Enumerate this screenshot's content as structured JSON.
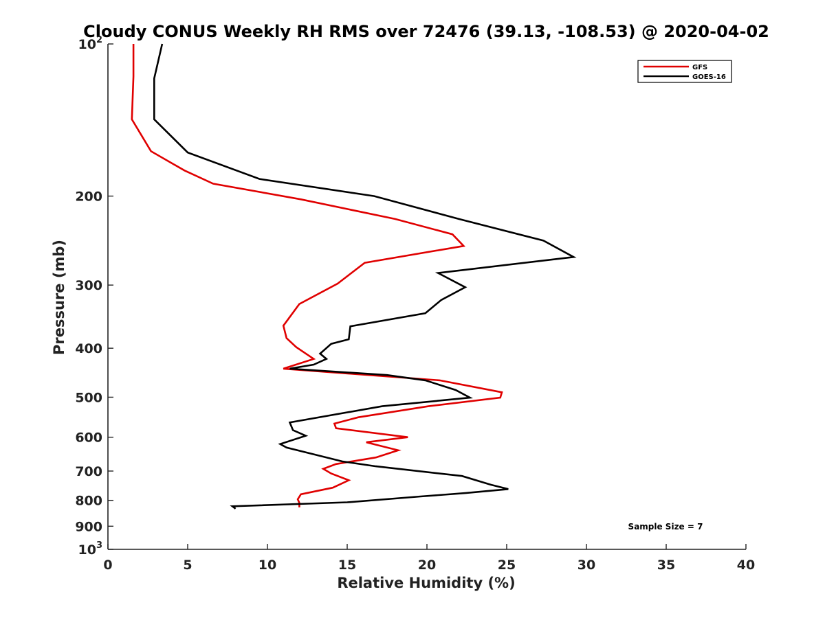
{
  "chart_data": {
    "type": "line",
    "title": "Cloudy CONUS Weekly RH RMS over 72476 (39.13, -108.53) @ 2020-04-02",
    "xlabel": "Relative Humidity (%)",
    "ylabel": "Pressure (mb)",
    "xlim": [
      0,
      40
    ],
    "ylim": [
      100,
      1000
    ],
    "y_scale": "log",
    "y_reversed": true,
    "x_ticks": [
      "0",
      "5",
      "10",
      "15",
      "20",
      "25",
      "30",
      "35",
      "40"
    ],
    "y_ticks": [
      {
        "value": 100,
        "label": "10",
        "exp": "2"
      },
      {
        "value": 200,
        "label": "200"
      },
      {
        "value": 300,
        "label": "300"
      },
      {
        "value": 400,
        "label": "400"
      },
      {
        "value": 500,
        "label": "500"
      },
      {
        "value": 600,
        "label": "600"
      },
      {
        "value": 700,
        "label": "700"
      },
      {
        "value": 800,
        "label": "800"
      },
      {
        "value": 900,
        "label": "900"
      },
      {
        "value": 1000,
        "label": "10",
        "exp": "3"
      }
    ],
    "grid": false,
    "legend_position": "top-right",
    "annotation": "Sample Size = 7",
    "series": [
      {
        "name": "GFS",
        "color": "#e00000",
        "points": [
          [
            1.6,
            100
          ],
          [
            1.6,
            116
          ],
          [
            1.5,
            141
          ],
          [
            2.7,
            163
          ],
          [
            4.8,
            178
          ],
          [
            6.6,
            189
          ],
          [
            12.1,
            203
          ],
          [
            18.0,
            222
          ],
          [
            21.6,
            238
          ],
          [
            22.3,
            251
          ],
          [
            16.1,
            271
          ],
          [
            14.4,
            298
          ],
          [
            12.0,
            327
          ],
          [
            11.0,
            361
          ],
          [
            11.2,
            382
          ],
          [
            11.8,
            398
          ],
          [
            12.9,
            420
          ],
          [
            11.0,
            439
          ],
          [
            20.8,
            463
          ],
          [
            24.7,
            489
          ],
          [
            24.6,
            501
          ],
          [
            20.1,
            521
          ],
          [
            15.7,
            548
          ],
          [
            14.2,
            564
          ],
          [
            14.3,
            576
          ],
          [
            18.8,
            600
          ],
          [
            16.2,
            614
          ],
          [
            18.2,
            637
          ],
          [
            16.8,
            658
          ],
          [
            14.3,
            678
          ],
          [
            13.5,
            693
          ],
          [
            14.0,
            708
          ],
          [
            15.1,
            730
          ],
          [
            14.1,
            755
          ],
          [
            12.1,
            778
          ],
          [
            11.9,
            796
          ],
          [
            12.0,
            809
          ],
          [
            12.0,
            826
          ]
        ]
      },
      {
        "name": "GOES-16",
        "color": "#000000",
        "points": [
          [
            3.4,
            100
          ],
          [
            2.9,
            117
          ],
          [
            2.9,
            141
          ],
          [
            5.0,
            164
          ],
          [
            9.5,
            185
          ],
          [
            16.7,
            200
          ],
          [
            22.0,
            222
          ],
          [
            27.3,
            245
          ],
          [
            29.2,
            264
          ],
          [
            20.7,
            284
          ],
          [
            22.4,
            303
          ],
          [
            20.9,
            321
          ],
          [
            19.9,
            341
          ],
          [
            15.2,
            362
          ],
          [
            15.1,
            384
          ],
          [
            14.0,
            392
          ],
          [
            13.3,
            410
          ],
          [
            13.7,
            420
          ],
          [
            12.9,
            431
          ],
          [
            11.4,
            439
          ],
          [
            17.5,
            452
          ],
          [
            19.9,
            463
          ],
          [
            21.8,
            484
          ],
          [
            22.7,
            501
          ],
          [
            17.2,
            521
          ],
          [
            11.4,
            561
          ],
          [
            11.6,
            581
          ],
          [
            12.4,
            596
          ],
          [
            10.8,
            619
          ],
          [
            11.2,
            629
          ],
          [
            14.7,
            670
          ],
          [
            16.8,
            685
          ],
          [
            22.2,
            716
          ],
          [
            24.0,
            745
          ],
          [
            25.1,
            760
          ],
          [
            22.4,
            774
          ],
          [
            19.6,
            786
          ],
          [
            15.0,
            807
          ],
          [
            7.8,
            822
          ],
          [
            8.0,
            831
          ]
        ]
      }
    ]
  }
}
